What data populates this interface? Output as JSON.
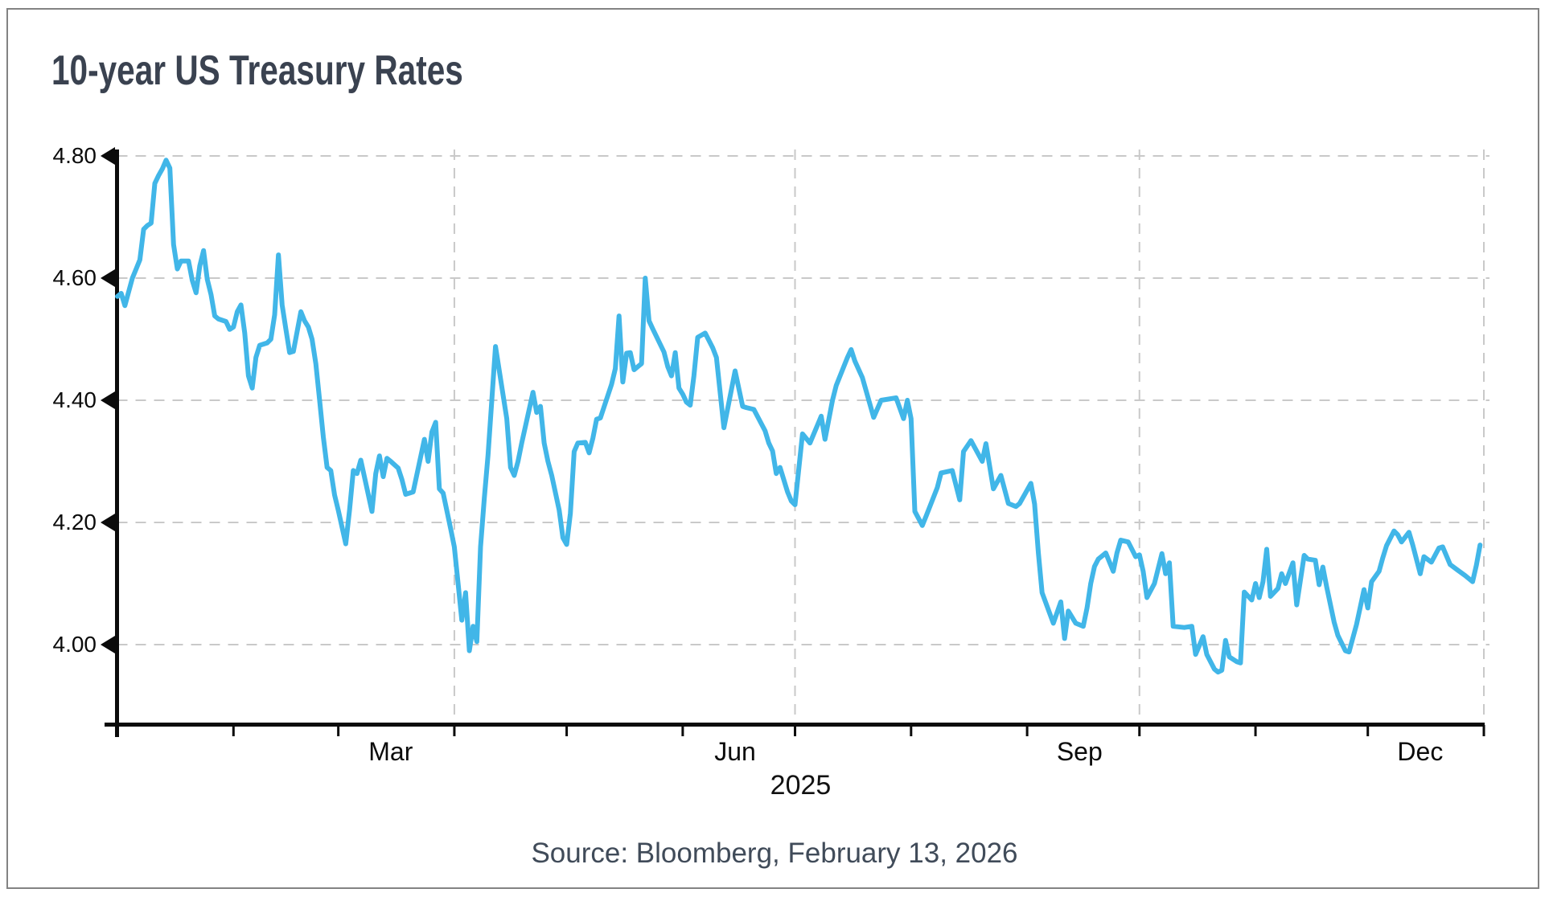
{
  "chart_data": {
    "type": "line",
    "title": "10-year US Treasury Rates",
    "source": "Source: Bloomberg, February 13, 2026",
    "line_color": "#41b6e8",
    "grid": "dashed",
    "legend_position": "none",
    "y_axis": {
      "unit": "percent",
      "min": 3.87,
      "max": 4.82,
      "ticks": [
        {
          "label": "4.80",
          "value": 4.8
        },
        {
          "label": "4.60",
          "value": 4.6
        },
        {
          "label": "4.40",
          "value": 4.4
        },
        {
          "label": "4.20",
          "value": 4.2
        },
        {
          "label": "4.00",
          "value": 4.0
        }
      ]
    },
    "x_axis": {
      "unit": "day_of_year_2025",
      "range_days": [
        1,
        366
      ],
      "year_label": "2025",
      "month_tick_days": [
        1,
        32,
        60,
        91,
        121,
        152,
        182,
        213,
        244,
        274,
        305,
        335,
        366
      ],
      "gridline_days": [
        91,
        182,
        274,
        366
      ],
      "month_labels": [
        {
          "label": "Mar",
          "day": 74
        },
        {
          "label": "Jun",
          "day": 166
        },
        {
          "label": "Sep",
          "day": 258
        },
        {
          "label": "Dec",
          "day": 349
        }
      ]
    },
    "points": [
      [
        1,
        4.57
      ],
      [
        2,
        4.575
      ],
      [
        3,
        4.555
      ],
      [
        5,
        4.6
      ],
      [
        6,
        4.615
      ],
      [
        7,
        4.63
      ],
      [
        8,
        4.68
      ],
      [
        9,
        4.686
      ],
      [
        10,
        4.69
      ],
      [
        11,
        4.755
      ],
      [
        12,
        4.768
      ],
      [
        13,
        4.779
      ],
      [
        14,
        4.793
      ],
      [
        15,
        4.78
      ],
      [
        16,
        4.655
      ],
      [
        17,
        4.615
      ],
      [
        18,
        4.628
      ],
      [
        20,
        4.628
      ],
      [
        21,
        4.596
      ],
      [
        22,
        4.576
      ],
      [
        23,
        4.62
      ],
      [
        24,
        4.645
      ],
      [
        25,
        4.598
      ],
      [
        26,
        4.573
      ],
      [
        27,
        4.538
      ],
      [
        28,
        4.533
      ],
      [
        30,
        4.529
      ],
      [
        31,
        4.516
      ],
      [
        32,
        4.52
      ],
      [
        33,
        4.545
      ],
      [
        34,
        4.556
      ],
      [
        35,
        4.51
      ],
      [
        36,
        4.44
      ],
      [
        37,
        4.42
      ],
      [
        38,
        4.47
      ],
      [
        39,
        4.49
      ],
      [
        41,
        4.494
      ],
      [
        42,
        4.5
      ],
      [
        43,
        4.54
      ],
      [
        44,
        4.638
      ],
      [
        45,
        4.556
      ],
      [
        46,
        4.516
      ],
      [
        47,
        4.478
      ],
      [
        48,
        4.48
      ],
      [
        50,
        4.545
      ],
      [
        51,
        4.53
      ],
      [
        52,
        4.52
      ],
      [
        53,
        4.5
      ],
      [
        54,
        4.46
      ],
      [
        55,
        4.4
      ],
      [
        56,
        4.34
      ],
      [
        57,
        4.29
      ],
      [
        58,
        4.285
      ],
      [
        59,
        4.245
      ],
      [
        60,
        4.22
      ],
      [
        62,
        4.165
      ],
      [
        63,
        4.22
      ],
      [
        64,
        4.285
      ],
      [
        65,
        4.28
      ],
      [
        66,
        4.302
      ],
      [
        69,
        4.218
      ],
      [
        70,
        4.28
      ],
      [
        71,
        4.309
      ],
      [
        72,
        4.275
      ],
      [
        73,
        4.305
      ],
      [
        74,
        4.3
      ],
      [
        76,
        4.289
      ],
      [
        77,
        4.27
      ],
      [
        78,
        4.246
      ],
      [
        79,
        4.248
      ],
      [
        80,
        4.25
      ],
      [
        83,
        4.336
      ],
      [
        84,
        4.3
      ],
      [
        85,
        4.348
      ],
      [
        86,
        4.364
      ],
      [
        87,
        4.255
      ],
      [
        88,
        4.248
      ],
      [
        90,
        4.19
      ],
      [
        91,
        4.16
      ],
      [
        92,
        4.1
      ],
      [
        93,
        4.04
      ],
      [
        94,
        4.085
      ],
      [
        95,
        3.99
      ],
      [
        96,
        4.03
      ],
      [
        97,
        4.005
      ],
      [
        98,
        4.16
      ],
      [
        99,
        4.24
      ],
      [
        100,
        4.31
      ],
      [
        101,
        4.4
      ],
      [
        102,
        4.488
      ],
      [
        105,
        4.37
      ],
      [
        106,
        4.29
      ],
      [
        107,
        4.277
      ],
      [
        108,
        4.3
      ],
      [
        109,
        4.33
      ],
      [
        112,
        4.413
      ],
      [
        113,
        4.38
      ],
      [
        114,
        4.39
      ],
      [
        115,
        4.33
      ],
      [
        116,
        4.3
      ],
      [
        117,
        4.277
      ],
      [
        119,
        4.22
      ],
      [
        120,
        4.175
      ],
      [
        121,
        4.164
      ],
      [
        122,
        4.215
      ],
      [
        123,
        4.316
      ],
      [
        124,
        4.33
      ],
      [
        126,
        4.331
      ],
      [
        127,
        4.314
      ],
      [
        128,
        4.338
      ],
      [
        129,
        4.369
      ],
      [
        130,
        4.371
      ],
      [
        133,
        4.426
      ],
      [
        134,
        4.452
      ],
      [
        135,
        4.538
      ],
      [
        136,
        4.43
      ],
      [
        137,
        4.477
      ],
      [
        138,
        4.478
      ],
      [
        139,
        4.45
      ],
      [
        140,
        4.455
      ],
      [
        141,
        4.46
      ],
      [
        142,
        4.6
      ],
      [
        143,
        4.53
      ],
      [
        144,
        4.517
      ],
      [
        147,
        4.479
      ],
      [
        148,
        4.455
      ],
      [
        149,
        4.44
      ],
      [
        150,
        4.478
      ],
      [
        151,
        4.42
      ],
      [
        152,
        4.41
      ],
      [
        153,
        4.397
      ],
      [
        154,
        4.392
      ],
      [
        155,
        4.44
      ],
      [
        156,
        4.503
      ],
      [
        158,
        4.51
      ],
      [
        160,
        4.486
      ],
      [
        161,
        4.47
      ],
      [
        163,
        4.355
      ],
      [
        166,
        4.448
      ],
      [
        168,
        4.39
      ],
      [
        169,
        4.388
      ],
      [
        171,
        4.385
      ],
      [
        174,
        4.35
      ],
      [
        175,
        4.33
      ],
      [
        176,
        4.317
      ],
      [
        177,
        4.28
      ],
      [
        178,
        4.29
      ],
      [
        180,
        4.25
      ],
      [
        181,
        4.235
      ],
      [
        182,
        4.229
      ],
      [
        184,
        4.345
      ],
      [
        186,
        4.33
      ],
      [
        189,
        4.374
      ],
      [
        190,
        4.336
      ],
      [
        192,
        4.4
      ],
      [
        193,
        4.424
      ],
      [
        196,
        4.47
      ],
      [
        197,
        4.483
      ],
      [
        198,
        4.464
      ],
      [
        200,
        4.437
      ],
      [
        203,
        4.372
      ],
      [
        205,
        4.4
      ],
      [
        207,
        4.402
      ],
      [
        209,
        4.404
      ],
      [
        211,
        4.37
      ],
      [
        212,
        4.4
      ],
      [
        213,
        4.37
      ],
      [
        214,
        4.218
      ],
      [
        216,
        4.195
      ],
      [
        217,
        4.21
      ],
      [
        220,
        4.257
      ],
      [
        221,
        4.281
      ],
      [
        224,
        4.285
      ],
      [
        226,
        4.237
      ],
      [
        227,
        4.316
      ],
      [
        229,
        4.334
      ],
      [
        232,
        4.3
      ],
      [
        233,
        4.329
      ],
      [
        235,
        4.255
      ],
      [
        237,
        4.277
      ],
      [
        239,
        4.231
      ],
      [
        241,
        4.226
      ],
      [
        242,
        4.231
      ],
      [
        245,
        4.264
      ],
      [
        246,
        4.23
      ],
      [
        247,
        4.15
      ],
      [
        248,
        4.085
      ],
      [
        251,
        4.035
      ],
      [
        253,
        4.07
      ],
      [
        254,
        4.01
      ],
      [
        255,
        4.055
      ],
      [
        257,
        4.035
      ],
      [
        259,
        4.03
      ],
      [
        260,
        4.06
      ],
      [
        261,
        4.1
      ],
      [
        262,
        4.128
      ],
      [
        263,
        4.14
      ],
      [
        265,
        4.15
      ],
      [
        267,
        4.12
      ],
      [
        268,
        4.15
      ],
      [
        269,
        4.171
      ],
      [
        271,
        4.168
      ],
      [
        273,
        4.144
      ],
      [
        274,
        4.147
      ],
      [
        275,
        4.12
      ],
      [
        276,
        4.077
      ],
      [
        278,
        4.1
      ],
      [
        280,
        4.149
      ],
      [
        281,
        4.116
      ],
      [
        282,
        4.134
      ],
      [
        283,
        4.03
      ],
      [
        286,
        4.028
      ],
      [
        288,
        4.03
      ],
      [
        289,
        3.984
      ],
      [
        291,
        4.013
      ],
      [
        292,
        3.984
      ],
      [
        294,
        3.96
      ],
      [
        295,
        3.955
      ],
      [
        296,
        3.958
      ],
      [
        297,
        4.007
      ],
      [
        298,
        3.98
      ],
      [
        300,
        3.972
      ],
      [
        301,
        3.97
      ],
      [
        302,
        4.086
      ],
      [
        304,
        4.073
      ],
      [
        305,
        4.1
      ],
      [
        306,
        4.077
      ],
      [
        307,
        4.103
      ],
      [
        308,
        4.156
      ],
      [
        309,
        4.079
      ],
      [
        311,
        4.092
      ],
      [
        312,
        4.116
      ],
      [
        313,
        4.1
      ],
      [
        315,
        4.134
      ],
      [
        316,
        4.065
      ],
      [
        318,
        4.146
      ],
      [
        319,
        4.14
      ],
      [
        321,
        4.138
      ],
      [
        322,
        4.098
      ],
      [
        323,
        4.127
      ],
      [
        324,
        4.095
      ],
      [
        326,
        4.037
      ],
      [
        327,
        4.015
      ],
      [
        329,
        3.99
      ],
      [
        330,
        3.988
      ],
      [
        332,
        4.033
      ],
      [
        334,
        4.09
      ],
      [
        335,
        4.06
      ],
      [
        336,
        4.103
      ],
      [
        338,
        4.12
      ],
      [
        339,
        4.142
      ],
      [
        340,
        4.162
      ],
      [
        342,
        4.186
      ],
      [
        343,
        4.18
      ],
      [
        344,
        4.168
      ],
      [
        346,
        4.184
      ],
      [
        347,
        4.163
      ],
      [
        349,
        4.116
      ],
      [
        350,
        4.144
      ],
      [
        352,
        4.135
      ],
      [
        354,
        4.158
      ],
      [
        355,
        4.16
      ],
      [
        357,
        4.131
      ],
      [
        359,
        4.122
      ],
      [
        361,
        4.113
      ],
      [
        363,
        4.103
      ],
      [
        364,
        4.13
      ],
      [
        365,
        4.163
      ]
    ]
  }
}
